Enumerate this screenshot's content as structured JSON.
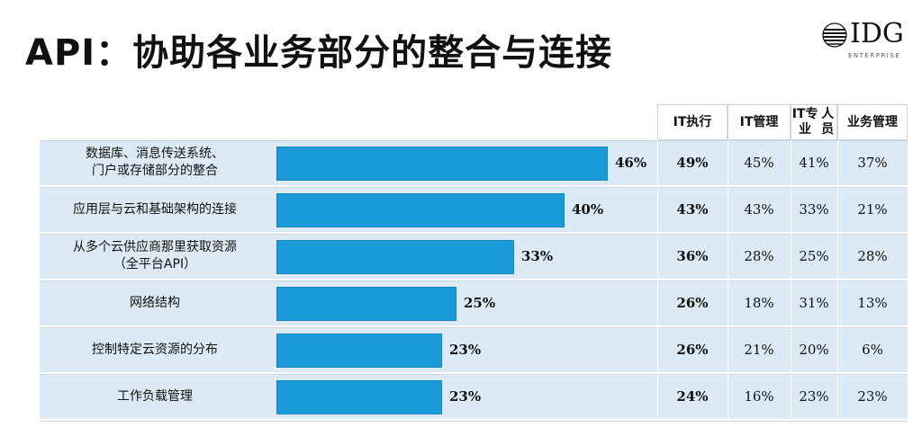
{
  "title": "API：协助各业务部分的整合与连接",
  "logo": {
    "word": "IDG",
    "sub": "ENTERPRISE"
  },
  "colors": {
    "bar": "#1a9ad6",
    "row_bg": "#dbeaf4"
  },
  "chart_data": {
    "type": "bar",
    "orientation": "horizontal",
    "categories": [
      "数据库、消息传送系统、门户或存储部分的整合",
      "应用层与云和基础架构的连接",
      "从多个云供应商那里获取资源（全平台API）",
      "网络结构",
      "控制特定云资源的分布",
      "工作负载管理"
    ],
    "category_lines": [
      [
        "数据库、消息传送系统、",
        "门户或存储部分的整合"
      ],
      [
        "应用层与云和基础架构的连接"
      ],
      [
        "从多个云供应商那里获取资源",
        "（全平台API）"
      ],
      [
        "网络结构"
      ],
      [
        "控制特定云资源的分布"
      ],
      [
        "工作负载管理"
      ]
    ],
    "values": [
      46,
      40,
      33,
      25,
      23,
      23
    ],
    "value_labels": [
      "46%",
      "40%",
      "33%",
      "25%",
      "23%",
      "23%"
    ],
    "table": {
      "columns": [
        "IT执行",
        "IT管理",
        "IT专业人员",
        "业务管理"
      ],
      "column_lines": [
        [
          "IT执行"
        ],
        [
          "IT管理"
        ],
        [
          "IT专业",
          "人员"
        ],
        [
          "业务管理"
        ]
      ],
      "rows": [
        [
          "49%",
          "45%",
          "41%",
          "37%"
        ],
        [
          "43%",
          "43%",
          "33%",
          "21%"
        ],
        [
          "36%",
          "28%",
          "25%",
          "28%"
        ],
        [
          "26%",
          "18%",
          "31%",
          "13%"
        ],
        [
          "26%",
          "21%",
          "20%",
          "6%"
        ],
        [
          "24%",
          "16%",
          "23%",
          "23%"
        ]
      ]
    }
  }
}
